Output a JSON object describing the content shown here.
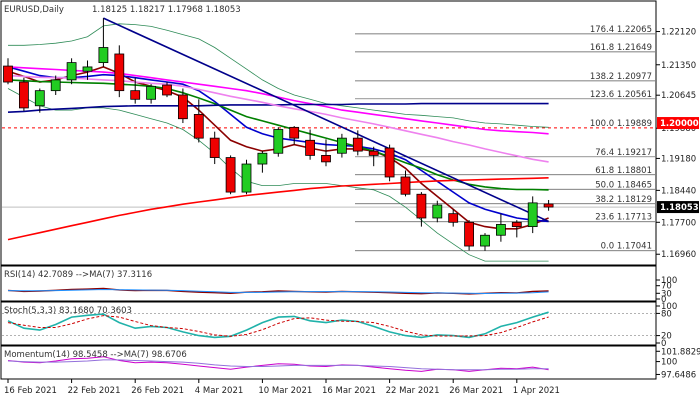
{
  "header": {
    "symbol": "EURUSD,Daily",
    "ohlc": "1.18125 1.18217 1.17968 1.18053"
  },
  "chart_data": {
    "type": "candlestick",
    "price_axis": {
      "ticks": [
        "1.22120",
        "1.21350",
        "1.20645",
        "1.19880",
        "1.19180",
        "1.18440",
        "1.17700",
        "1.16960"
      ],
      "tick_values": [
        1.2212,
        1.2135,
        1.20645,
        1.1988,
        1.1918,
        1.1844,
        1.177,
        1.1696
      ],
      "ylim": [
        1.1678,
        1.2248
      ]
    },
    "highlights": [
      {
        "label": "1.20000",
        "value": 1.2,
        "bg": "#ff0000",
        "fg": "#ffffff"
      },
      {
        "label": "1.18053",
        "value": 1.18053,
        "bg": "#000000",
        "fg": "#ffffff"
      }
    ],
    "fibonacci": [
      {
        "label": "176.4 1.22065",
        "value": 1.22065
      },
      {
        "label": "161.8 1.21649",
        "value": 1.21649
      },
      {
        "label": "138.2 1.20977",
        "value": 1.20977
      },
      {
        "label": "123.6 1.20561",
        "value": 1.20561
      },
      {
        "label": "100.0 1.19889",
        "value": 1.19889
      },
      {
        "label": "76.4 1.19217",
        "value": 1.19217
      },
      {
        "label": "61.8 1.18801",
        "value": 1.18801
      },
      {
        "label": "50.0 1.18465",
        "value": 1.18465
      },
      {
        "label": "38.2 1.18129",
        "value": 1.18129
      },
      {
        "label": "23.6 1.17713",
        "value": 1.17713
      },
      {
        "label": "0.0 1.17041",
        "value": 1.17041
      }
    ],
    "date_labels": [
      {
        "label": "16 Feb 2021",
        "index": 0
      },
      {
        "label": "22 Feb 2021",
        "index": 4
      },
      {
        "label": "26 Feb 2021",
        "index": 8
      },
      {
        "label": "4 Mar 2021",
        "index": 12
      },
      {
        "label": "10 Mar 2021",
        "index": 16
      },
      {
        "label": "16 Mar 2021",
        "index": 20
      },
      {
        "label": "22 Mar 2021",
        "index": 24
      },
      {
        "label": "26 Mar 2021",
        "index": 28
      },
      {
        "label": "1 Apr 2021",
        "index": 32
      }
    ],
    "candles": [
      [
        1.2132,
        1.215,
        1.209,
        1.2095
      ],
      [
        1.2095,
        1.2105,
        1.2028,
        1.2035
      ],
      [
        1.204,
        1.208,
        1.2024,
        1.2075
      ],
      [
        1.2075,
        1.211,
        1.2065,
        1.21
      ],
      [
        1.21,
        1.215,
        1.209,
        1.214
      ],
      [
        1.212,
        1.2145,
        1.21,
        1.213
      ],
      [
        1.214,
        1.2243,
        1.213,
        1.2175
      ],
      [
        1.216,
        1.218,
        1.206,
        1.2075
      ],
      [
        1.2075,
        1.2105,
        1.2045,
        1.2055
      ],
      [
        1.2055,
        1.209,
        1.2045,
        1.2085
      ],
      [
        1.2088,
        1.2095,
        1.206,
        1.2065
      ],
      [
        1.2065,
        1.208,
        1.2,
        1.201
      ],
      [
        1.202,
        1.2055,
        1.1955,
        1.1965
      ],
      [
        1.1965,
        1.198,
        1.1905,
        1.192
      ],
      [
        1.192,
        1.1925,
        1.1835,
        1.184
      ],
      [
        1.184,
        1.1915,
        1.1835,
        1.1905
      ],
      [
        1.1905,
        1.1935,
        1.1885,
        1.193
      ],
      [
        1.193,
        1.199,
        1.1922,
        1.1985
      ],
      [
        1.199,
        1.1993,
        1.195,
        1.1965
      ],
      [
        1.196,
        1.1985,
        1.1915,
        1.1925
      ],
      [
        1.1925,
        1.1962,
        1.19,
        1.191
      ],
      [
        1.193,
        1.1975,
        1.192,
        1.1965
      ],
      [
        1.1965,
        1.1983,
        1.1925,
        1.1935
      ],
      [
        1.1935,
        1.1945,
        1.19,
        1.1925
      ],
      [
        1.1942,
        1.195,
        1.1865,
        1.1875
      ],
      [
        1.1875,
        1.189,
        1.183,
        1.1835
      ],
      [
        1.1835,
        1.184,
        1.176,
        1.178
      ],
      [
        1.178,
        1.182,
        1.177,
        1.181
      ],
      [
        1.179,
        1.18,
        1.176,
        1.177
      ],
      [
        1.177,
        1.1775,
        1.1705,
        1.1715
      ],
      [
        1.1715,
        1.1745,
        1.1704,
        1.174
      ],
      [
        1.174,
        1.179,
        1.1725,
        1.1765
      ],
      [
        1.177,
        1.1775,
        1.1735,
        1.176
      ],
      [
        1.176,
        1.183,
        1.1745,
        1.1815
      ],
      [
        1.18125,
        1.18217,
        1.17968,
        1.18053
      ]
    ],
    "moving_averages": [
      {
        "color": "#8b0000",
        "values": [
          1.212,
          1.2108,
          1.2095,
          1.21,
          1.211,
          1.2118,
          1.213,
          1.2115,
          1.2095,
          1.2085,
          1.2075,
          1.206,
          1.203,
          1.1995,
          1.196,
          1.1945,
          1.1935,
          1.194,
          1.195,
          1.1942,
          1.1935,
          1.194,
          1.194,
          1.1935,
          1.192,
          1.1895,
          1.186,
          1.183,
          1.18,
          1.177,
          1.176,
          1.1755,
          1.1755,
          1.1765,
          1.178
        ]
      },
      {
        "color": "#0000cd",
        "values": [
          1.213,
          1.212,
          1.211,
          1.2105,
          1.2105,
          1.2108,
          1.2112,
          1.211,
          1.2105,
          1.21,
          1.2095,
          1.209,
          1.2075,
          1.205,
          1.202,
          1.199,
          1.1975,
          1.1965,
          1.196,
          1.1955,
          1.195,
          1.1948,
          1.1946,
          1.194,
          1.193,
          1.1915,
          1.189,
          1.1865,
          1.184,
          1.1815,
          1.18,
          1.179,
          1.178,
          1.1775,
          1.1772
        ]
      },
      {
        "color": "#008000",
        "values": [
          1.21,
          1.2098,
          1.2096,
          1.2095,
          1.2094,
          1.2093,
          1.2092,
          1.209,
          1.2088,
          1.2085,
          1.208,
          1.207,
          1.2058,
          1.2045,
          1.203,
          1.2015,
          1.2005,
          1.1995,
          1.1985,
          1.1975,
          1.1965,
          1.1955,
          1.1945,
          1.1935,
          1.1922,
          1.1908,
          1.1895,
          1.188,
          1.1868,
          1.1858,
          1.1852,
          1.1848,
          1.1846,
          1.1846,
          1.1845
        ]
      },
      {
        "color": "#ff00ff",
        "values": [
          1.213,
          1.2128,
          1.2126,
          1.2124,
          1.2122,
          1.212,
          1.2118,
          1.2115,
          1.211,
          1.2105,
          1.21,
          1.2095,
          1.209,
          1.2085,
          1.208,
          1.2075,
          1.2068,
          1.206,
          1.2052,
          1.2045,
          1.2038,
          1.203,
          1.2025,
          1.202,
          1.2015,
          1.201,
          1.2005,
          1.2,
          1.1995,
          1.199,
          1.1985,
          1.1982,
          1.198,
          1.1978,
          1.1975
        ]
      },
      {
        "color": "#00008b",
        "values": [
          1.2025,
          1.2027,
          1.203,
          1.2032,
          1.2034,
          1.2036,
          1.2038,
          1.2039,
          1.204,
          1.204,
          1.204,
          1.204,
          1.204,
          1.2041,
          1.2042,
          1.2042,
          1.2042,
          1.2042,
          1.2043,
          1.2043,
          1.2043,
          1.2043,
          1.2044,
          1.2044,
          1.2044,
          1.2044,
          1.2045,
          1.2045,
          1.2045,
          1.2045,
          1.2045,
          1.2045,
          1.2045,
          1.2045,
          1.2045
        ]
      },
      {
        "color": "#ee82ee",
        "values": [
          1.211,
          1.2108,
          1.2106,
          1.2105,
          1.2104,
          1.2102,
          1.21,
          1.2098,
          1.2095,
          1.2092,
          1.209,
          1.2085,
          1.2078,
          1.207,
          1.2062,
          1.2055,
          1.2048,
          1.204,
          1.2033,
          1.2027,
          1.202,
          1.2012,
          1.2005,
          1.1998,
          1.199,
          1.1982,
          1.1974,
          1.1966,
          1.1957,
          1.1949,
          1.194,
          1.1932,
          1.1924,
          1.1916,
          1.191
        ]
      },
      {
        "color": "#ff0000",
        "values": [
          1.173,
          1.1738,
          1.1746,
          1.1754,
          1.1762,
          1.177,
          1.1778,
          1.1786,
          1.1793,
          1.18,
          1.1806,
          1.1812,
          1.1817,
          1.1822,
          1.1827,
          1.1832,
          1.1836,
          1.184,
          1.1844,
          1.1848,
          1.1851,
          1.1854,
          1.1856,
          1.1858,
          1.186,
          1.1862,
          1.1864,
          1.1866,
          1.1867,
          1.1868,
          1.1869,
          1.187,
          1.1871,
          1.1872,
          1.1873
        ]
      }
    ],
    "bands": [
      {
        "color": "#2e8b57",
        "values": [
          1.218,
          1.218,
          1.2182,
          1.2185,
          1.219,
          1.22,
          1.2225,
          1.223,
          1.2228,
          1.2224,
          1.2215,
          1.2205,
          1.2195,
          1.2175,
          1.215,
          1.2125,
          1.21,
          1.208,
          1.2065,
          1.2055,
          1.2045,
          1.204,
          1.2035,
          1.203,
          1.2025,
          1.202,
          1.2018,
          1.2015,
          1.2012,
          1.2005,
          1.2,
          1.1998,
          1.1995,
          1.1992,
          1.199
        ]
      },
      {
        "color": "#2e8b57",
        "values": [
          1.208,
          1.206,
          1.204,
          1.203,
          1.203,
          1.2035,
          1.2035,
          1.203,
          1.202,
          1.201,
          1.2,
          1.1985,
          1.196,
          1.193,
          1.1895,
          1.1865,
          1.1855,
          1.1855,
          1.186,
          1.186,
          1.186,
          1.1855,
          1.185,
          1.1845,
          1.183,
          1.1805,
          1.1775,
          1.1745,
          1.172,
          1.1695,
          1.168,
          1.168,
          1.168,
          1.168,
          1.168
        ]
      }
    ],
    "trendline": {
      "color": "#00008b",
      "from": [
        6,
        1.2243
      ],
      "to": [
        34,
        1.1772
      ]
    },
    "rsi": {
      "label": "RSI(14) 42.7089 -->MA(7) 37.3116",
      "ticks": [
        "100",
        "70",
        "30",
        "0"
      ],
      "tick_values": [
        100,
        70,
        30,
        0
      ],
      "values": [
        45,
        40,
        42,
        46,
        50,
        52,
        56,
        48,
        44,
        46,
        45,
        40,
        36,
        33,
        30,
        36,
        38,
        42,
        40,
        38,
        37,
        40,
        38,
        36,
        33,
        30,
        28,
        32,
        30,
        27,
        30,
        33,
        32,
        40,
        42.7
      ],
      "ma": [
        44,
        43,
        43,
        44,
        46,
        48,
        50,
        49,
        48,
        47,
        46,
        44,
        41,
        38,
        35,
        35,
        35,
        37,
        38,
        39,
        39,
        39,
        39,
        38,
        37,
        35,
        33,
        32,
        31,
        30,
        29,
        30,
        31,
        33,
        37.3
      ]
    },
    "stoch": {
      "label": "Stoch(5,3,3) 83.1680 70.3603",
      "ticks": [
        "100",
        "80",
        "20",
        "0"
      ],
      "tick_values": [
        100,
        80,
        20,
        0
      ],
      "k": [
        60,
        40,
        35,
        50,
        70,
        75,
        78,
        55,
        40,
        45,
        42,
        30,
        20,
        15,
        18,
        35,
        55,
        70,
        72,
        60,
        55,
        62,
        58,
        45,
        30,
        20,
        15,
        22,
        20,
        15,
        25,
        45,
        55,
        70,
        83.2
      ],
      "d": [
        55,
        48,
        42,
        42,
        52,
        65,
        74,
        70,
        58,
        47,
        42,
        39,
        31,
        22,
        18,
        23,
        36,
        53,
        66,
        68,
        62,
        59,
        58,
        55,
        45,
        32,
        22,
        19,
        19,
        19,
        20,
        28,
        42,
        57,
        70.4
      ]
    },
    "momentum": {
      "label": "Momentum(14) 98.5458 -->MA(7) 98.6706",
      "ticks": [
        "101.8829",
        "100",
        "97.6486"
      ],
      "tick_values": [
        101.8829,
        100,
        97.6486
      ],
      "values": [
        100.2,
        99.9,
        99.8,
        100.1,
        100.5,
        100.6,
        100.9,
        100.2,
        99.8,
        99.9,
        99.8,
        99.5,
        99.2,
        98.9,
        98.6,
        99.0,
        99.3,
        99.6,
        99.5,
        99.2,
        99.1,
        99.4,
        99.3,
        99.0,
        98.7,
        98.4,
        98.2,
        98.6,
        98.5,
        98.2,
        98.5,
        98.8,
        98.7,
        99.0,
        98.5
      ],
      "ma": [
        100.1,
        100.0,
        99.9,
        99.9,
        100.0,
        100.1,
        100.3,
        100.3,
        100.2,
        100.1,
        100.0,
        99.9,
        99.7,
        99.4,
        99.2,
        99.1,
        99.1,
        99.2,
        99.3,
        99.3,
        99.3,
        99.3,
        99.3,
        99.2,
        99.1,
        98.9,
        98.7,
        98.6,
        98.5,
        98.5,
        98.5,
        98.6,
        98.6,
        98.7,
        98.7
      ]
    }
  }
}
